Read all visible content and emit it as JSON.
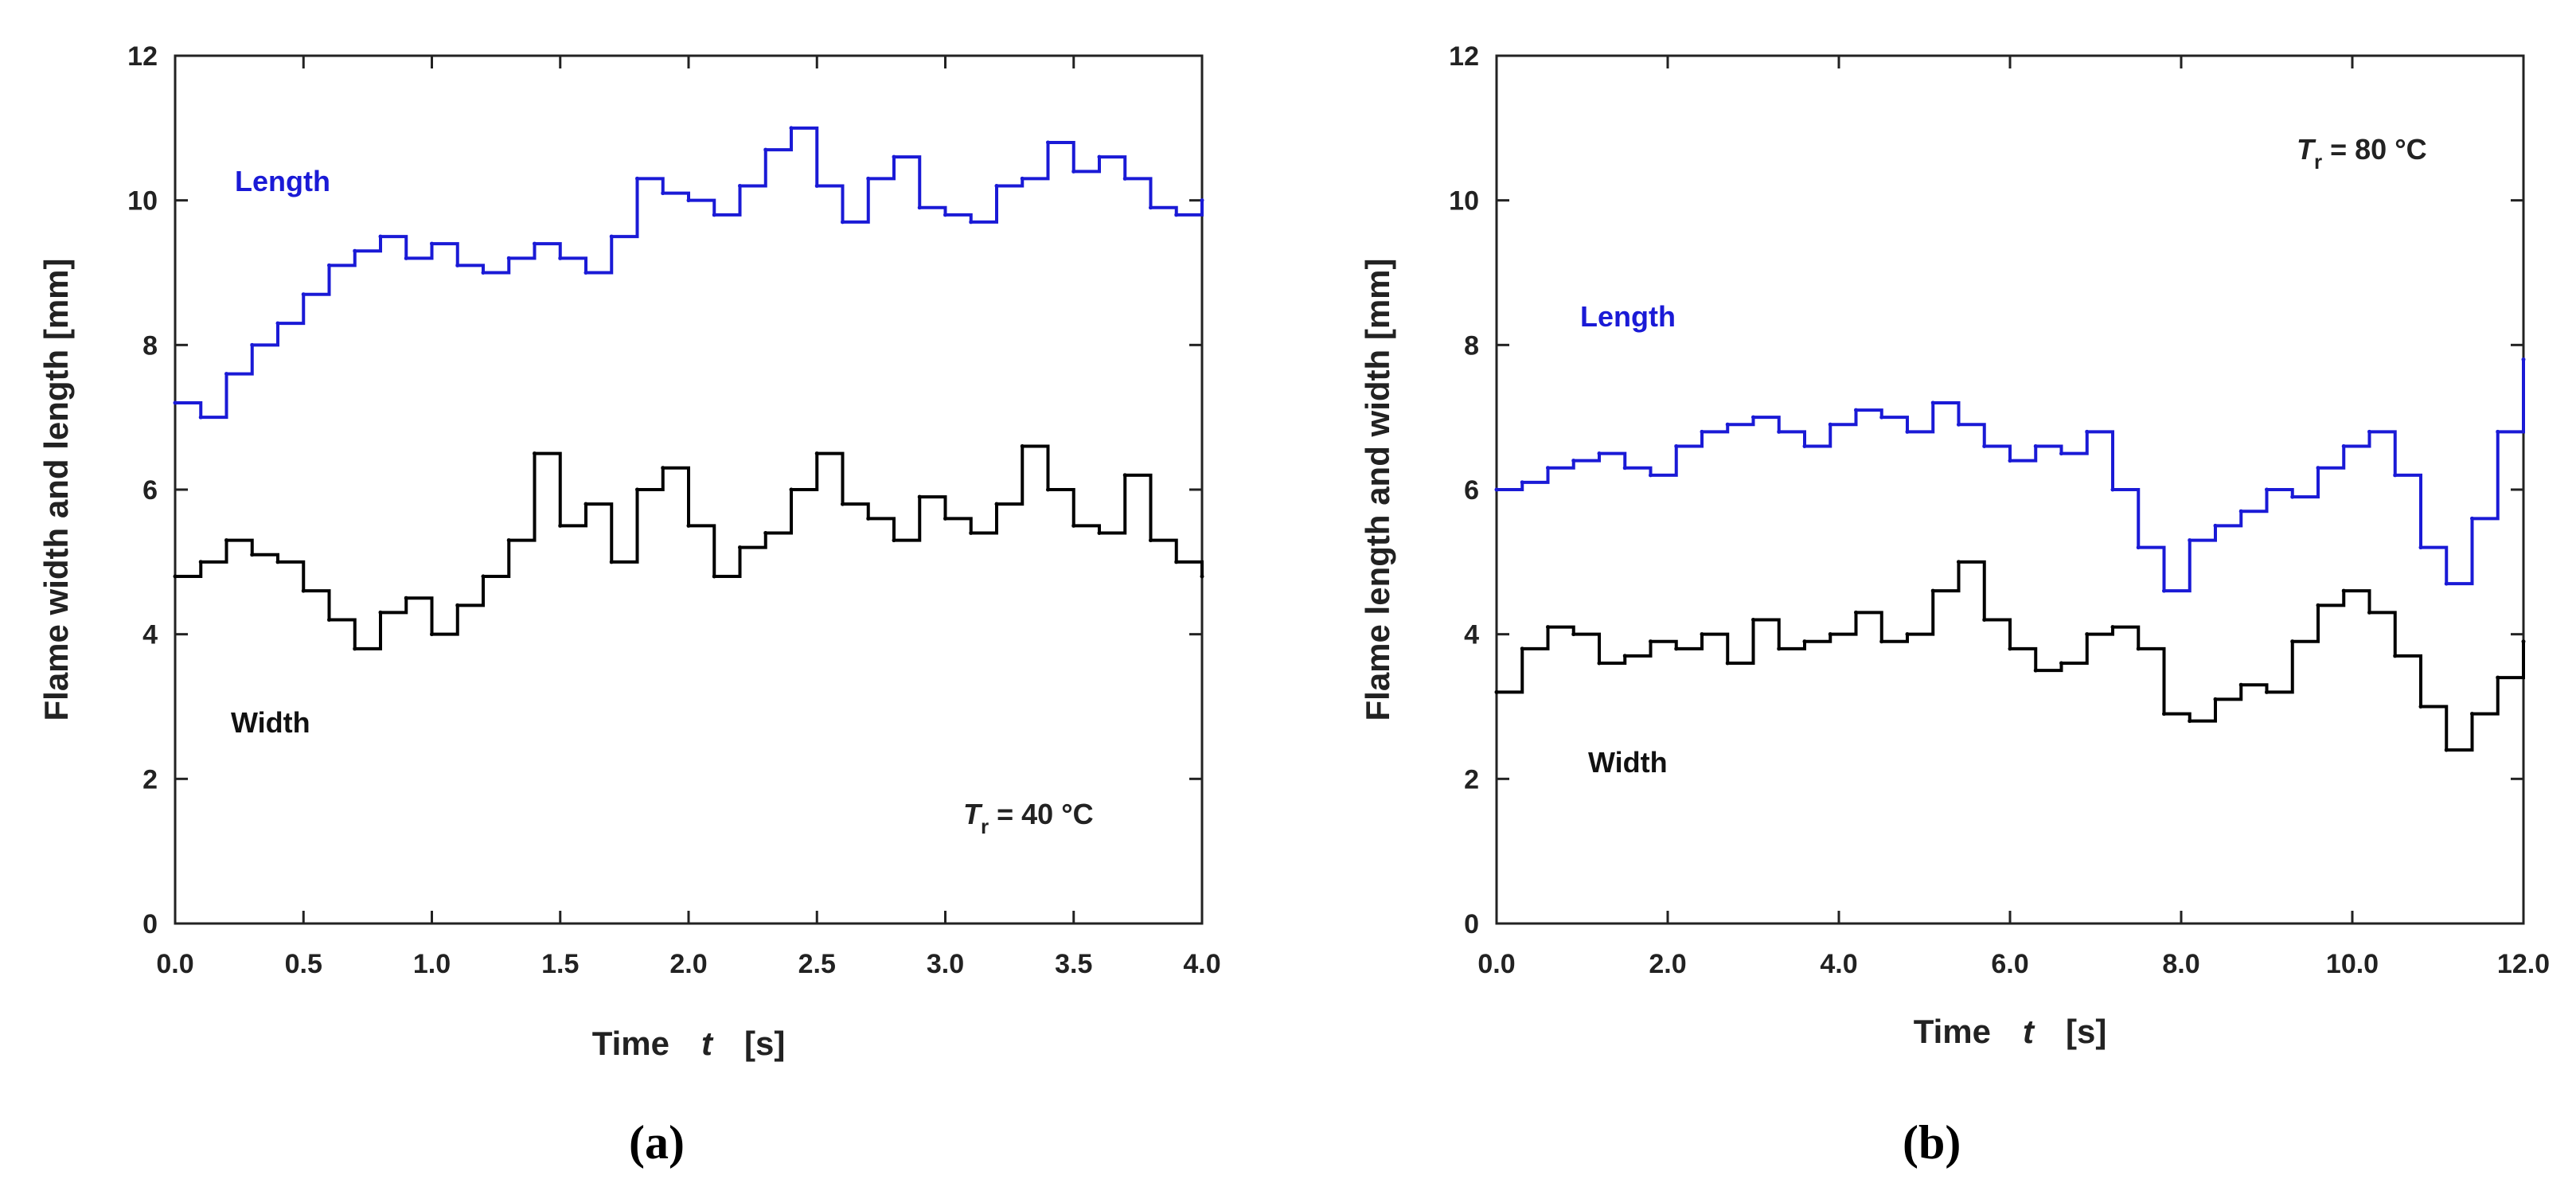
{
  "colors": {
    "length": "#1a1ad6",
    "width": "#000000",
    "axis": "#222222"
  },
  "chart_data": [
    {
      "type": "line",
      "panel_label": "(a)",
      "xlabel_main": "Time",
      "xlabel_var": "t",
      "xlabel_unit": "[s]",
      "ylabel": "Flame width and length    [mm]",
      "xlim": [
        0,
        4.0
      ],
      "ylim": [
        0,
        12
      ],
      "xticks": [
        0,
        0.5,
        1.0,
        1.5,
        2.0,
        2.5,
        3.0,
        3.5,
        4.0
      ],
      "xtick_labels": [
        "0.0",
        "0.5",
        "1.0",
        "1.5",
        "2.0",
        "2.5",
        "3.0",
        "3.5",
        "4.0"
      ],
      "yticks": [
        0,
        2,
        4,
        6,
        8,
        10,
        12
      ],
      "ytick_labels": [
        "0",
        "2",
        "4",
        "6",
        "8",
        "10",
        "12"
      ],
      "annotation": {
        "symbol": "T",
        "subscript": "r",
        "text": " = 40 °C"
      },
      "series": [
        {
          "name": "Length",
          "color_key": "length",
          "x": [
            0.0,
            0.1,
            0.2,
            0.3,
            0.4,
            0.5,
            0.6,
            0.7,
            0.8,
            0.9,
            1.0,
            1.1,
            1.2,
            1.3,
            1.4,
            1.5,
            1.6,
            1.7,
            1.8,
            1.9,
            2.0,
            2.1,
            2.2,
            2.3,
            2.4,
            2.5,
            2.6,
            2.7,
            2.8,
            2.9,
            3.0,
            3.1,
            3.2,
            3.3,
            3.4,
            3.5,
            3.6,
            3.7,
            3.8,
            3.9,
            4.0
          ],
          "values": [
            7.2,
            7.0,
            7.6,
            8.0,
            8.3,
            8.7,
            9.1,
            9.3,
            9.5,
            9.2,
            9.4,
            9.1,
            9.0,
            9.2,
            9.4,
            9.2,
            9.0,
            9.5,
            10.3,
            10.1,
            10.0,
            9.8,
            10.2,
            10.7,
            11.0,
            10.2,
            9.7,
            10.3,
            10.6,
            9.9,
            9.8,
            9.7,
            10.2,
            10.3,
            10.8,
            10.4,
            10.6,
            10.3,
            9.9,
            9.8,
            10.0
          ],
          "label_position": "upper-left"
        },
        {
          "name": "Width",
          "color_key": "width",
          "x": [
            0.0,
            0.1,
            0.2,
            0.3,
            0.4,
            0.5,
            0.6,
            0.7,
            0.8,
            0.9,
            1.0,
            1.1,
            1.2,
            1.3,
            1.4,
            1.5,
            1.6,
            1.7,
            1.8,
            1.9,
            2.0,
            2.1,
            2.2,
            2.3,
            2.4,
            2.5,
            2.6,
            2.7,
            2.8,
            2.9,
            3.0,
            3.1,
            3.2,
            3.3,
            3.4,
            3.5,
            3.6,
            3.7,
            3.8,
            3.9,
            4.0
          ],
          "values": [
            4.8,
            5.0,
            5.3,
            5.1,
            5.0,
            4.6,
            4.2,
            3.8,
            4.3,
            4.5,
            4.0,
            4.4,
            4.8,
            5.3,
            6.5,
            5.5,
            5.8,
            5.0,
            6.0,
            6.3,
            5.5,
            4.8,
            5.2,
            5.4,
            6.0,
            6.5,
            5.8,
            5.6,
            5.3,
            5.9,
            5.6,
            5.4,
            5.8,
            6.6,
            6.0,
            5.5,
            5.4,
            6.2,
            5.3,
            5.0,
            4.8
          ],
          "label_position": "lower-left"
        }
      ]
    },
    {
      "type": "line",
      "panel_label": "(b)",
      "xlabel_main": "Time",
      "xlabel_var": "t",
      "xlabel_unit": "[s]",
      "ylabel": "Flame length and width    [mm]",
      "xlim": [
        0,
        12.0
      ],
      "ylim": [
        0,
        12
      ],
      "xticks": [
        0,
        2,
        4,
        6,
        8,
        10,
        12
      ],
      "xtick_labels": [
        "0.0",
        "2.0",
        "4.0",
        "6.0",
        "8.0",
        "10.0",
        "12.0"
      ],
      "yticks": [
        0,
        2,
        4,
        6,
        8,
        10,
        12
      ],
      "ytick_labels": [
        "0",
        "2",
        "4",
        "6",
        "8",
        "10",
        "12"
      ],
      "annotation": {
        "symbol": "T",
        "subscript": "r",
        "text": " = 80 °C"
      },
      "series": [
        {
          "name": "Length",
          "color_key": "length",
          "x": [
            0.0,
            0.3,
            0.6,
            0.9,
            1.2,
            1.5,
            1.8,
            2.1,
            2.4,
            2.7,
            3.0,
            3.3,
            3.6,
            3.9,
            4.2,
            4.5,
            4.8,
            5.1,
            5.4,
            5.7,
            6.0,
            6.3,
            6.6,
            6.9,
            7.2,
            7.5,
            7.8,
            8.1,
            8.4,
            8.7,
            9.0,
            9.3,
            9.6,
            9.9,
            10.2,
            10.5,
            10.8,
            11.1,
            11.4,
            11.7,
            12.0
          ],
          "values": [
            6.0,
            6.1,
            6.3,
            6.4,
            6.5,
            6.3,
            6.2,
            6.6,
            6.8,
            6.9,
            7.0,
            6.8,
            6.6,
            6.9,
            7.1,
            7.0,
            6.8,
            7.2,
            6.9,
            6.6,
            6.4,
            6.6,
            6.5,
            6.8,
            6.0,
            5.2,
            4.6,
            5.3,
            5.5,
            5.7,
            6.0,
            5.9,
            6.3,
            6.6,
            6.8,
            6.2,
            5.2,
            4.7,
            5.6,
            6.8,
            7.8
          ],
          "label_position": "upper-left"
        },
        {
          "name": "Width",
          "color_key": "width",
          "x": [
            0.0,
            0.3,
            0.6,
            0.9,
            1.2,
            1.5,
            1.8,
            2.1,
            2.4,
            2.7,
            3.0,
            3.3,
            3.6,
            3.9,
            4.2,
            4.5,
            4.8,
            5.1,
            5.4,
            5.7,
            6.0,
            6.3,
            6.6,
            6.9,
            7.2,
            7.5,
            7.8,
            8.1,
            8.4,
            8.7,
            9.0,
            9.3,
            9.6,
            9.9,
            10.2,
            10.5,
            10.8,
            11.1,
            11.4,
            11.7,
            12.0
          ],
          "values": [
            3.2,
            3.8,
            4.1,
            4.0,
            3.6,
            3.7,
            3.9,
            3.8,
            4.0,
            3.6,
            4.2,
            3.8,
            3.9,
            4.0,
            4.3,
            3.9,
            4.0,
            4.6,
            5.0,
            4.2,
            3.8,
            3.5,
            3.6,
            4.0,
            4.1,
            3.8,
            2.9,
            2.8,
            3.1,
            3.3,
            3.2,
            3.9,
            4.4,
            4.6,
            4.3,
            3.7,
            3.0,
            2.4,
            2.9,
            3.4,
            3.9
          ],
          "label_position": "lower-left"
        }
      ]
    }
  ]
}
